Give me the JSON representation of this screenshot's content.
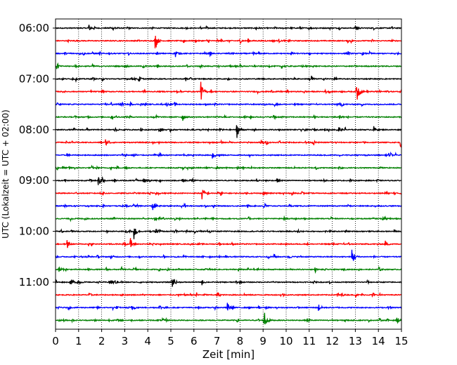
{
  "chart_data": {
    "type": "line",
    "title": "",
    "xlabel": "Zeit  [min]",
    "ylabel": "UTC (Lokalzeit = UTC + 02:00)",
    "xlim": [
      0,
      15
    ],
    "x_ticks": [
      "0",
      "1",
      "2",
      "3",
      "4",
      "5",
      "6",
      "7",
      "8",
      "9",
      "10",
      "11",
      "12",
      "13",
      "14",
      "15"
    ],
    "y_tick_labels": [
      "06:00",
      "07:00",
      "08:00",
      "09:00",
      "10:00",
      "11:00"
    ],
    "x_grid": true,
    "trace_colors": [
      "#000000",
      "#ff0000",
      "#0000ff",
      "#008000"
    ],
    "traces": [
      {
        "start": "06:00",
        "events": [
          {
            "t": 1.43,
            "a": 0.35
          },
          {
            "t": 2.5,
            "a": 0.15
          },
          {
            "t": 8.7,
            "a": 0.15
          },
          {
            "t": 13.0,
            "a": 0.15
          }
        ]
      },
      {
        "start": "06:15",
        "events": [
          {
            "t": 4.32,
            "a": 0.75
          },
          {
            "t": 8.0,
            "a": 0.12
          }
        ]
      },
      {
        "start": "06:30",
        "events": [
          {
            "t": 5.2,
            "a": 0.3
          },
          {
            "t": 10.2,
            "a": 0.15
          }
        ]
      },
      {
        "start": "06:45",
        "events": [
          {
            "t": 3.0,
            "a": 0.15
          },
          {
            "t": 9.8,
            "a": 0.15
          }
        ]
      },
      {
        "start": "07:00",
        "events": [
          {
            "t": 3.6,
            "a": 0.25
          },
          {
            "t": 11.0,
            "a": 0.15
          }
        ]
      },
      {
        "start": "07:15",
        "events": [
          {
            "t": 6.3,
            "a": 0.75
          },
          {
            "t": 13.05,
            "a": 1.1
          }
        ]
      },
      {
        "start": "07:30",
        "events": [
          {
            "t": 4.8,
            "a": 0.15
          },
          {
            "t": 9.5,
            "a": 0.15
          }
        ]
      },
      {
        "start": "07:45",
        "events": [
          {
            "t": 5.5,
            "a": 0.3
          },
          {
            "t": 12.3,
            "a": 0.3
          }
        ]
      },
      {
        "start": "08:00",
        "events": [
          {
            "t": 7.85,
            "a": 0.75
          },
          {
            "t": 4.5,
            "a": 0.25
          },
          {
            "t": 12.2,
            "a": 0.3
          },
          {
            "t": 13.8,
            "a": 0.25
          }
        ]
      },
      {
        "start": "08:15",
        "events": [
          {
            "t": 2.3,
            "a": 0.15
          },
          {
            "t": 8.9,
            "a": 0.2
          },
          {
            "t": 14.95,
            "a": 0.5
          }
        ]
      },
      {
        "start": "08:30",
        "events": [
          {
            "t": 6.8,
            "a": 0.35
          },
          {
            "t": 3.4,
            "a": 0.15
          }
        ]
      },
      {
        "start": "08:45",
        "events": [
          {
            "t": 3.0,
            "a": 0.15
          },
          {
            "t": 12.3,
            "a": 0.15
          }
        ]
      },
      {
        "start": "09:00",
        "events": [
          {
            "t": 1.85,
            "a": 0.75
          },
          {
            "t": 5.5,
            "a": 0.2
          },
          {
            "t": 9.6,
            "a": 0.15
          }
        ]
      },
      {
        "start": "09:15",
        "events": [
          {
            "t": 6.35,
            "a": 0.5
          },
          {
            "t": 9.0,
            "a": 0.15
          }
        ]
      },
      {
        "start": "09:30",
        "events": [
          {
            "t": 4.2,
            "a": 0.45
          },
          {
            "t": 9.0,
            "a": 0.2
          }
        ]
      },
      {
        "start": "09:45",
        "events": [
          {
            "t": 4.3,
            "a": 0.2
          },
          {
            "t": 10.7,
            "a": 0.15
          }
        ]
      },
      {
        "start": "10:00",
        "events": [
          {
            "t": 3.4,
            "a": 0.75
          },
          {
            "t": 4.35,
            "a": 0.25
          },
          {
            "t": 10.5,
            "a": 0.15
          }
        ]
      },
      {
        "start": "10:15",
        "events": [
          {
            "t": 0.5,
            "a": 0.35
          },
          {
            "t": 3.25,
            "a": 0.35
          },
          {
            "t": 14.3,
            "a": 0.25
          }
        ]
      },
      {
        "start": "10:30",
        "events": [
          {
            "t": 12.85,
            "a": 0.9
          },
          {
            "t": 2.4,
            "a": 0.15
          },
          {
            "t": 10.1,
            "a": 0.15
          }
        ]
      },
      {
        "start": "10:45",
        "events": [
          {
            "t": 0.15,
            "a": 0.3
          },
          {
            "t": 14.0,
            "a": 0.2
          }
        ]
      },
      {
        "start": "11:00",
        "events": [
          {
            "t": 5.05,
            "a": 0.45
          },
          {
            "t": 2.4,
            "a": 0.25
          },
          {
            "t": 1.0,
            "a": 0.15
          }
        ]
      },
      {
        "start": "11:15",
        "events": [
          {
            "t": 7.0,
            "a": 0.2
          },
          {
            "t": 12.2,
            "a": 0.2
          }
        ]
      },
      {
        "start": "11:30",
        "events": [
          {
            "t": 3.3,
            "a": 0.35
          },
          {
            "t": 7.45,
            "a": 0.4
          },
          {
            "t": 11.4,
            "a": 0.3
          }
        ]
      },
      {
        "start": "11:45",
        "events": [
          {
            "t": 9.05,
            "a": 0.9
          },
          {
            "t": 14.8,
            "a": 0.2
          }
        ]
      }
    ]
  }
}
